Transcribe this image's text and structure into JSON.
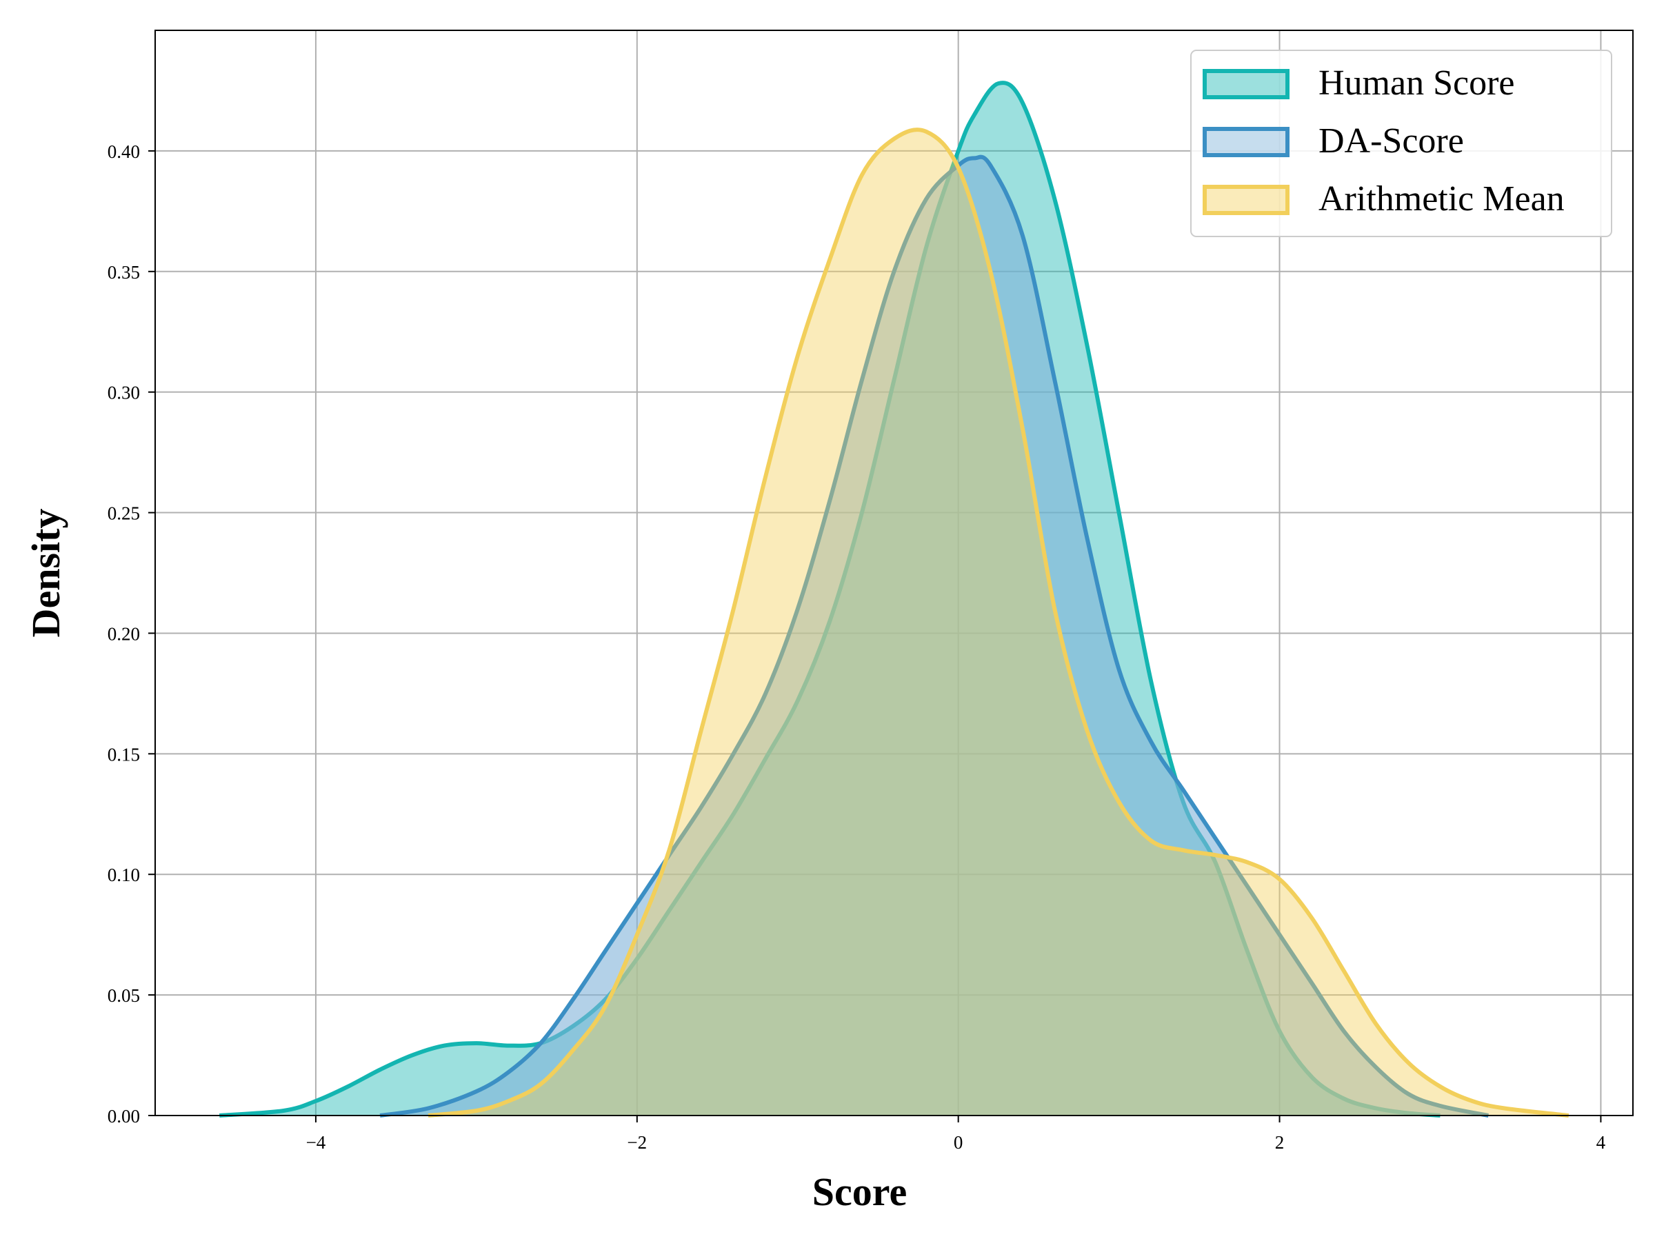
{
  "chart_data": {
    "type": "area",
    "title": "",
    "xlabel": "Score",
    "ylabel": "Density",
    "xlim": [
      -5,
      4.2
    ],
    "ylim": [
      0,
      0.45
    ],
    "xticks": [
      -4,
      -2,
      0,
      2,
      4
    ],
    "xtick_labels": [
      "−4",
      "−2",
      "0",
      "2",
      "4"
    ],
    "yticks": [
      0,
      0.05,
      0.1,
      0.15,
      0.2,
      0.25,
      0.3,
      0.35,
      0.4
    ],
    "ytick_labels": [
      "0.00",
      "0.05",
      "0.10",
      "0.15",
      "0.20",
      "0.25",
      "0.30",
      "0.35",
      "0.40"
    ],
    "grid": true,
    "legend_position": "top-right",
    "series": [
      {
        "name": "Human Score",
        "line_color": "#13b5b1",
        "fill_color": "#13b5b1",
        "x": [
          -4.6,
          -4.2,
          -4.0,
          -3.8,
          -3.6,
          -3.4,
          -3.2,
          -3.0,
          -2.8,
          -2.6,
          -2.4,
          -2.2,
          -2.0,
          -1.8,
          -1.6,
          -1.4,
          -1.2,
          -1.0,
          -0.8,
          -0.6,
          -0.4,
          -0.2,
          0.0,
          0.1,
          0.25,
          0.4,
          0.6,
          0.8,
          1.0,
          1.2,
          1.4,
          1.6,
          1.8,
          2.0,
          2.2,
          2.4,
          2.6,
          2.8,
          3.0
        ],
        "y": [
          0.0,
          0.002,
          0.006,
          0.012,
          0.019,
          0.025,
          0.029,
          0.03,
          0.029,
          0.03,
          0.037,
          0.048,
          0.065,
          0.085,
          0.105,
          0.125,
          0.148,
          0.172,
          0.205,
          0.25,
          0.305,
          0.36,
          0.4,
          0.415,
          0.428,
          0.42,
          0.38,
          0.32,
          0.25,
          0.18,
          0.13,
          0.105,
          0.068,
          0.035,
          0.016,
          0.007,
          0.003,
          0.001,
          0.0
        ]
      },
      {
        "name": "DA-Score",
        "line_color": "#3b8fc4",
        "fill_color": "#80b3d9",
        "x": [
          -3.6,
          -3.3,
          -3.0,
          -2.8,
          -2.6,
          -2.4,
          -2.2,
          -2.0,
          -1.8,
          -1.6,
          -1.4,
          -1.2,
          -1.0,
          -0.8,
          -0.6,
          -0.4,
          -0.2,
          0.0,
          0.1,
          0.2,
          0.4,
          0.6,
          0.8,
          1.0,
          1.2,
          1.4,
          1.6,
          1.8,
          2.0,
          2.2,
          2.4,
          2.6,
          2.8,
          3.0,
          3.3
        ],
        "y": [
          0.0,
          0.003,
          0.01,
          0.018,
          0.03,
          0.048,
          0.068,
          0.088,
          0.108,
          0.128,
          0.15,
          0.175,
          0.21,
          0.255,
          0.305,
          0.35,
          0.38,
          0.394,
          0.397,
          0.394,
          0.365,
          0.305,
          0.24,
          0.185,
          0.155,
          0.135,
          0.115,
          0.095,
          0.075,
          0.055,
          0.035,
          0.02,
          0.009,
          0.004,
          0.0
        ]
      },
      {
        "name": "Arithmetic Mean",
        "line_color": "#f2cf5b",
        "fill_color": "#f2cf5b",
        "x": [
          -3.3,
          -3.0,
          -2.8,
          -2.6,
          -2.4,
          -2.2,
          -2.0,
          -1.8,
          -1.6,
          -1.4,
          -1.2,
          -1.0,
          -0.8,
          -0.6,
          -0.4,
          -0.2,
          0.0,
          0.2,
          0.4,
          0.6,
          0.8,
          1.0,
          1.2,
          1.4,
          1.6,
          1.8,
          2.0,
          2.2,
          2.4,
          2.6,
          2.8,
          3.0,
          3.2,
          3.4,
          3.8
        ],
        "y": [
          0.0,
          0.002,
          0.006,
          0.013,
          0.027,
          0.045,
          0.075,
          0.11,
          0.16,
          0.21,
          0.265,
          0.315,
          0.355,
          0.39,
          0.405,
          0.408,
          0.393,
          0.35,
          0.285,
          0.21,
          0.16,
          0.13,
          0.114,
          0.11,
          0.108,
          0.105,
          0.098,
          0.082,
          0.06,
          0.038,
          0.022,
          0.012,
          0.006,
          0.003,
          0.0
        ]
      }
    ]
  }
}
